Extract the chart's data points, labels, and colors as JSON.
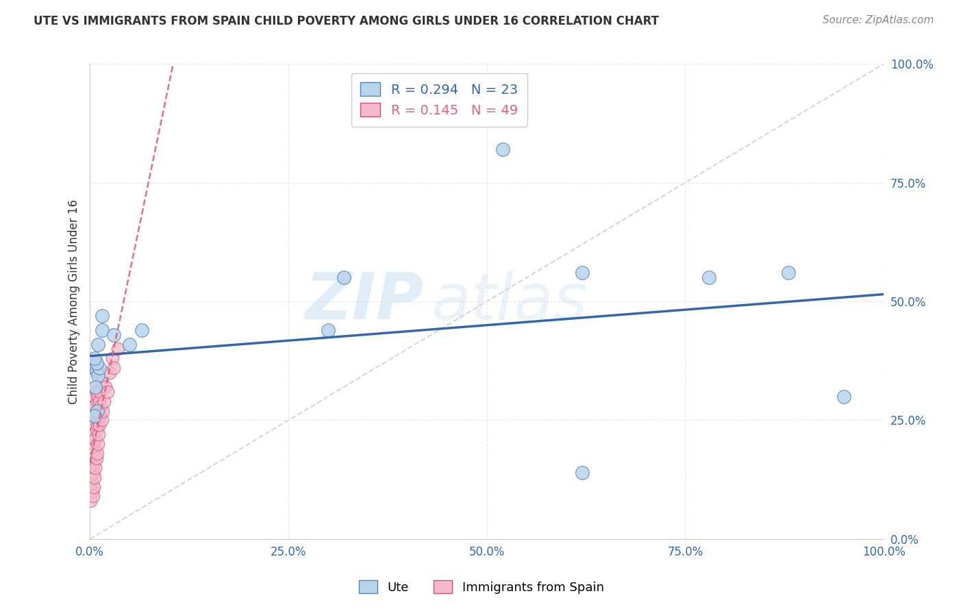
{
  "title": "UTE VS IMMIGRANTS FROM SPAIN CHILD POVERTY AMONG GIRLS UNDER 16 CORRELATION CHART",
  "source": "Source: ZipAtlas.com",
  "ylabel": "Child Poverty Among Girls Under 16",
  "xlim": [
    0,
    1
  ],
  "ylim": [
    0,
    1
  ],
  "xtick_labels": [
    "0.0%",
    "25.0%",
    "50.0%",
    "75.0%",
    "100.0%"
  ],
  "xtick_vals": [
    0.0,
    0.25,
    0.5,
    0.75,
    1.0
  ],
  "ytick_labels": [
    "0.0%",
    "25.0%",
    "50.0%",
    "75.0%",
    "100.0%"
  ],
  "ytick_vals": [
    0.0,
    0.25,
    0.5,
    0.75,
    1.0
  ],
  "legend_entries": [
    "Ute",
    "Immigrants from Spain"
  ],
  "ute_color": "#b8d4ed",
  "spain_color": "#f5b8cc",
  "ute_edge_color": "#5580b0",
  "spain_edge_color": "#d05070",
  "ute_line_color": "#3366aa",
  "spain_line_color": "#e06080",
  "diagonal_color": "#cccccc",
  "watermark_zip": "ZIP",
  "watermark_atlas": "atlas",
  "background_color": "#ffffff",
  "grid_color": "#e8e8e8",
  "R_ute": 0.294,
  "N_ute": 23,
  "R_spain": 0.145,
  "N_spain": 49,
  "ute_scatter_x": [
    0.005,
    0.008,
    0.01,
    0.012,
    0.015,
    0.008,
    0.006,
    0.01,
    0.007,
    0.009,
    0.006,
    0.015,
    0.03,
    0.065,
    0.05,
    0.32,
    0.3,
    0.52,
    0.62,
    0.78,
    0.88,
    0.95,
    0.62
  ],
  "ute_scatter_y": [
    0.36,
    0.355,
    0.345,
    0.36,
    0.44,
    0.37,
    0.38,
    0.41,
    0.32,
    0.27,
    0.26,
    0.47,
    0.43,
    0.44,
    0.41,
    0.55,
    0.44,
    0.82,
    0.14,
    0.55,
    0.56,
    0.3,
    0.56
  ],
  "spain_scatter_x": [
    0.001,
    0.002,
    0.002,
    0.003,
    0.003,
    0.004,
    0.004,
    0.004,
    0.005,
    0.005,
    0.005,
    0.005,
    0.006,
    0.006,
    0.006,
    0.006,
    0.007,
    0.007,
    0.007,
    0.007,
    0.008,
    0.008,
    0.008,
    0.008,
    0.008,
    0.009,
    0.009,
    0.009,
    0.01,
    0.01,
    0.01,
    0.01,
    0.011,
    0.011,
    0.012,
    0.012,
    0.013,
    0.013,
    0.014,
    0.015,
    0.015,
    0.016,
    0.018,
    0.02,
    0.022,
    0.025,
    0.028,
    0.03,
    0.035
  ],
  "spain_scatter_y": [
    0.08,
    0.12,
    0.15,
    0.1,
    0.18,
    0.09,
    0.14,
    0.2,
    0.11,
    0.16,
    0.22,
    0.28,
    0.13,
    0.19,
    0.24,
    0.3,
    0.15,
    0.21,
    0.26,
    0.32,
    0.17,
    0.23,
    0.27,
    0.31,
    0.36,
    0.18,
    0.24,
    0.29,
    0.2,
    0.25,
    0.3,
    0.35,
    0.22,
    0.27,
    0.24,
    0.29,
    0.26,
    0.31,
    0.28,
    0.25,
    0.33,
    0.27,
    0.29,
    0.32,
    0.31,
    0.35,
    0.38,
    0.36,
    0.4
  ],
  "ute_trend_x0": 0.0,
  "ute_trend_y0": 0.345,
  "ute_trend_x1": 1.0,
  "ute_trend_y1": 0.52,
  "spain_trend_x0": 0.0,
  "spain_trend_y0": 0.18,
  "spain_trend_x1": 0.035,
  "spain_trend_y1": 0.31
}
